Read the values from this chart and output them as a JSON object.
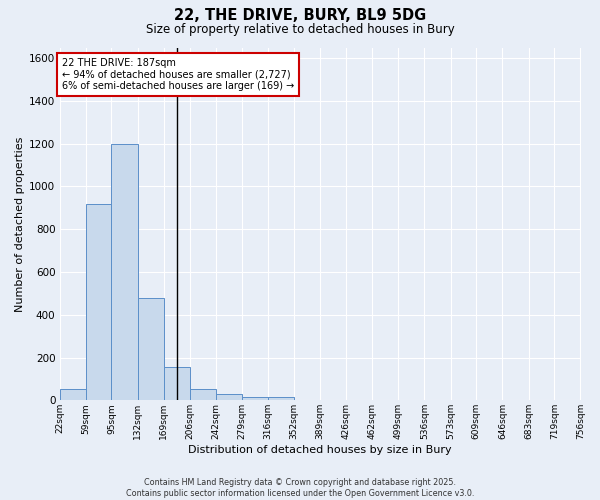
{
  "title": "22, THE DRIVE, BURY, BL9 5DG",
  "subtitle": "Size of property relative to detached houses in Bury",
  "xlabel": "Distribution of detached houses by size in Bury",
  "ylabel": "Number of detached properties",
  "bin_edges": [
    22,
    59,
    95,
    132,
    169,
    206,
    242,
    279,
    316,
    352,
    389,
    426,
    462,
    499,
    536,
    573,
    609,
    646,
    683,
    719,
    756
  ],
  "bar_heights": [
    55,
    920,
    1200,
    480,
    155,
    55,
    30,
    15,
    15,
    0,
    0,
    0,
    0,
    0,
    0,
    0,
    0,
    0,
    0,
    0
  ],
  "bar_color": "#c8d9ec",
  "bar_edge_color": "#5b8fc9",
  "property_size": 187,
  "vline_color": "#000000",
  "annotation_line1": "22 THE DRIVE: 187sqm",
  "annotation_line2": "← 94% of detached houses are smaller (2,727)",
  "annotation_line3": "6% of semi-detached houses are larger (169) →",
  "annotation_box_color": "#ffffff",
  "annotation_box_edge_color": "#cc0000",
  "ylim": [
    0,
    1650
  ],
  "yticks": [
    0,
    200,
    400,
    600,
    800,
    1000,
    1200,
    1400,
    1600
  ],
  "background_color": "#e8eef7",
  "plot_bg_color": "#e8eef7",
  "grid_color": "#ffffff",
  "footer_line1": "Contains HM Land Registry data © Crown copyright and database right 2025.",
  "footer_line2": "Contains public sector information licensed under the Open Government Licence v3.0.",
  "tick_labels": [
    "22sqm",
    "59sqm",
    "95sqm",
    "132sqm",
    "169sqm",
    "206sqm",
    "242sqm",
    "279sqm",
    "316sqm",
    "352sqm",
    "389sqm",
    "426sqm",
    "462sqm",
    "499sqm",
    "536sqm",
    "573sqm",
    "609sqm",
    "646sqm",
    "683sqm",
    "719sqm",
    "756sqm"
  ]
}
